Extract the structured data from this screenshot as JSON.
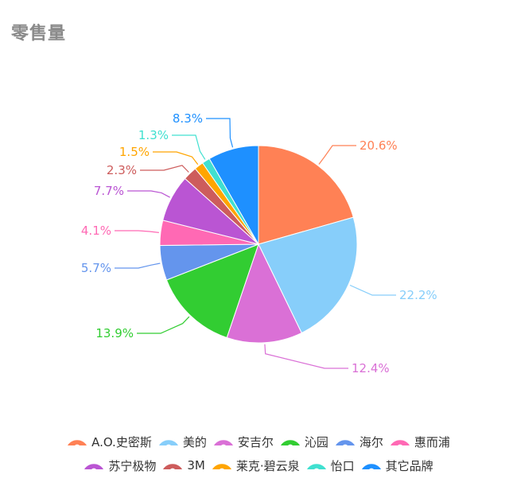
{
  "chart_data": {
    "type": "pie",
    "title": "零售量",
    "slices": [
      {
        "label": "A.O.史密斯",
        "value": 20.6,
        "color": "#FF8155"
      },
      {
        "label": "美的",
        "value": 22.2,
        "color": "#87CEFA"
      },
      {
        "label": "安吉尔",
        "value": 12.4,
        "color": "#DA70D6"
      },
      {
        "label": "沁园",
        "value": 13.9,
        "color": "#32CD32"
      },
      {
        "label": "海尔",
        "value": 5.7,
        "color": "#6495ED"
      },
      {
        "label": "惠而浦",
        "value": 4.1,
        "color": "#FF69B4"
      },
      {
        "label": "苏宁极物",
        "value": 7.7,
        "color": "#BA55D3"
      },
      {
        "label": "3M",
        "value": 2.3,
        "color": "#CD5C5C"
      },
      {
        "label": "莱克·碧云泉",
        "value": 1.5,
        "color": "#FFA500"
      },
      {
        "label": "怡口",
        "value": 1.3,
        "color": "#40E0D0"
      },
      {
        "label": "其它品牌",
        "value": 8.3,
        "color": "#1E90FF"
      }
    ],
    "data_labels": [
      "20.6%",
      "22.2%",
      "12.4%",
      "13.9%",
      "5.7%",
      "4.1%",
      "7.7%",
      "2.3%",
      "1.5%",
      "1.3%",
      "8.3%"
    ],
    "legend_position": "bottom"
  }
}
